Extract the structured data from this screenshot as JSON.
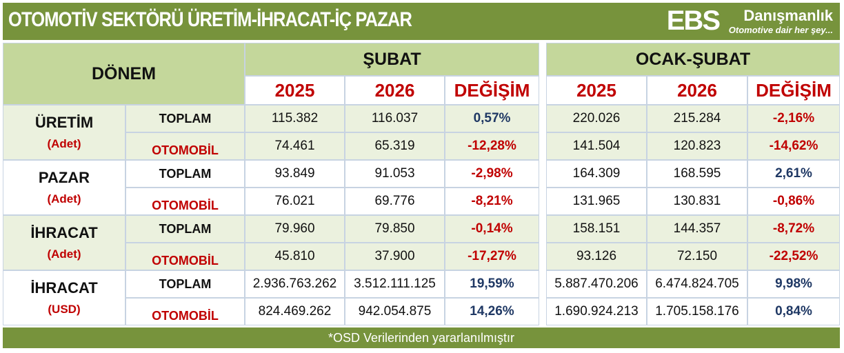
{
  "title": "OTOMOTİV SEKTÖRÜ  ÜRETİM-İHRACAT-İÇ PAZAR",
  "logo": {
    "brand": "EBS",
    "name": "Danışmanlık",
    "tagline": "Otomotive dair her şey..."
  },
  "header": {
    "period_label": "DÖNEM",
    "groups": [
      "ŞUBAT",
      "OCAK-ŞUBAT"
    ],
    "columns": [
      "2025",
      "2026",
      "DEĞİŞİM"
    ]
  },
  "rows": [
    {
      "group": "ÜRETİM",
      "unit": "(Adet)",
      "items": [
        {
          "label": "TOPLAM",
          "values": [
            "115.382",
            "116.037",
            "0,57%",
            "220.026",
            "215.284",
            "-2,16%"
          ]
        },
        {
          "label": "OTOMOBİL",
          "values": [
            "74.461",
            "65.319",
            "-12,28%",
            "141.504",
            "120.823",
            "-14,62%"
          ]
        }
      ]
    },
    {
      "group": "PAZAR",
      "unit": "(Adet)",
      "items": [
        {
          "label": "TOPLAM",
          "values": [
            "93.849",
            "91.053",
            "-2,98%",
            "164.309",
            "168.595",
            "2,61%"
          ]
        },
        {
          "label": "OTOMOBİL",
          "values": [
            "76.021",
            "69.776",
            "-8,21%",
            "131.965",
            "130.831",
            "-0,86%"
          ]
        }
      ]
    },
    {
      "group": "İHRACAT",
      "unit": "(Adet)",
      "items": [
        {
          "label": "TOPLAM",
          "values": [
            "79.960",
            "79.850",
            "-0,14%",
            "158.151",
            "144.357",
            "-8,72%"
          ]
        },
        {
          "label": "OTOMOBİL",
          "values": [
            "45.810",
            "37.900",
            "-17,27%",
            "93.126",
            "72.150",
            "-22,52%"
          ]
        }
      ]
    },
    {
      "group": "İHRACAT",
      "unit": "(USD)",
      "items": [
        {
          "label": "TOPLAM",
          "values": [
            "2.936.763.262",
            "3.512.111.125",
            "19,59%",
            "5.887.470.206",
            "6.474.824.705",
            "9,98%"
          ]
        },
        {
          "label": "OTOMOBİL",
          "values": [
            "824.469.262",
            "942.054.875",
            "14,26%",
            "1.690.924.213",
            "1.705.158.176",
            "0,84%"
          ]
        }
      ]
    }
  ],
  "footer": "*OSD Verilerinden yararlanılmıştır",
  "colors": {
    "brand_green": "#77933c",
    "header_green": "#c4d79b",
    "row_green": "#ebf1de",
    "positive": "#1f3864",
    "negative": "#c00000"
  }
}
